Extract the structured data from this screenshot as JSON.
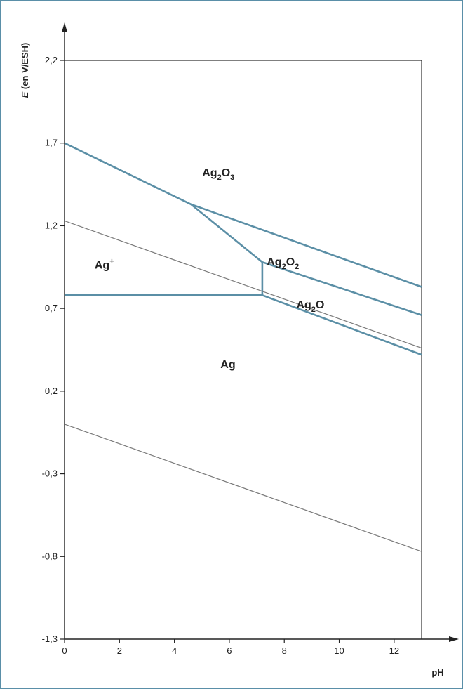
{
  "colors": {
    "border": "#5a8fa8",
    "phase_boundary": "#5b8fa6",
    "water_line": "#7a7a7a",
    "axis": "#222222",
    "frame": "#333333"
  },
  "chart_data": {
    "type": "line",
    "xlabel": "pH",
    "ylabel_italic": "E",
    "ylabel_rest": " (en V/ESH)",
    "xlim": [
      0,
      13
    ],
    "ylim": [
      -1.3,
      2.2
    ],
    "x_ticks": [
      {
        "value": 0,
        "label": "0"
      },
      {
        "value": 2,
        "label": "2"
      },
      {
        "value": 4,
        "label": "4"
      },
      {
        "value": 6,
        "label": "6"
      },
      {
        "value": 8,
        "label": "8"
      },
      {
        "value": 10,
        "label": "10"
      },
      {
        "value": 12,
        "label": "12"
      }
    ],
    "y_ticks": [
      {
        "value": 2.2,
        "label": "2,2"
      },
      {
        "value": 1.7,
        "label": "1,7"
      },
      {
        "value": 1.2,
        "label": "1,2"
      },
      {
        "value": 0.7,
        "label": "0,7"
      },
      {
        "value": 0.2,
        "label": "0,2"
      },
      {
        "value": -0.3,
        "label": "-0,3"
      },
      {
        "value": -0.8,
        "label": "-0,8"
      },
      {
        "value": -1.3,
        "label": "-1,3"
      }
    ],
    "grid": false,
    "boundary_lines": [
      {
        "kind": "phase",
        "points": [
          [
            0,
            1.7
          ],
          [
            4.6,
            1.33
          ]
        ]
      },
      {
        "kind": "phase",
        "points": [
          [
            4.6,
            1.33
          ],
          [
            13.0,
            0.83
          ]
        ]
      },
      {
        "kind": "phase",
        "points": [
          [
            4.6,
            1.33
          ],
          [
            7.2,
            0.98
          ]
        ]
      },
      {
        "kind": "phase",
        "points": [
          [
            7.2,
            0.98
          ],
          [
            13.0,
            0.66
          ]
        ]
      },
      {
        "kind": "phase",
        "points": [
          [
            7.2,
            0.98
          ],
          [
            7.2,
            0.78
          ]
        ]
      },
      {
        "kind": "phase",
        "points": [
          [
            0,
            0.78
          ],
          [
            7.2,
            0.78
          ]
        ]
      },
      {
        "kind": "phase",
        "points": [
          [
            7.2,
            0.78
          ],
          [
            13.0,
            0.42
          ]
        ]
      },
      {
        "kind": "water",
        "points": [
          [
            0,
            1.23
          ],
          [
            13.0,
            0.46
          ]
        ]
      },
      {
        "kind": "water",
        "points": [
          [
            0,
            0.0
          ],
          [
            13.0,
            -0.77
          ]
        ]
      }
    ],
    "region_labels": [
      {
        "id": "ag2o3",
        "base": "Ag",
        "sub1": "2",
        "mid": "O",
        "sub2": "3",
        "sup": "",
        "x": 5.6,
        "y": 1.5
      },
      {
        "id": "ag2o2",
        "base": "Ag",
        "sub1": "2",
        "mid": "O",
        "sub2": "2",
        "sup": "",
        "x": 7.95,
        "y": 0.96
      },
      {
        "id": "ag2o",
        "base": "Ag",
        "sub1": "2",
        "mid": "O",
        "sub2": "",
        "sup": "",
        "x": 8.95,
        "y": 0.7
      },
      {
        "id": "agplus",
        "base": "Ag",
        "sub1": "",
        "mid": "",
        "sub2": "",
        "sup": "+",
        "x": 1.45,
        "y": 0.94
      },
      {
        "id": "ag",
        "base": "Ag",
        "sub1": "",
        "mid": "",
        "sub2": "",
        "sup": "",
        "x": 5.95,
        "y": 0.34
      }
    ]
  }
}
